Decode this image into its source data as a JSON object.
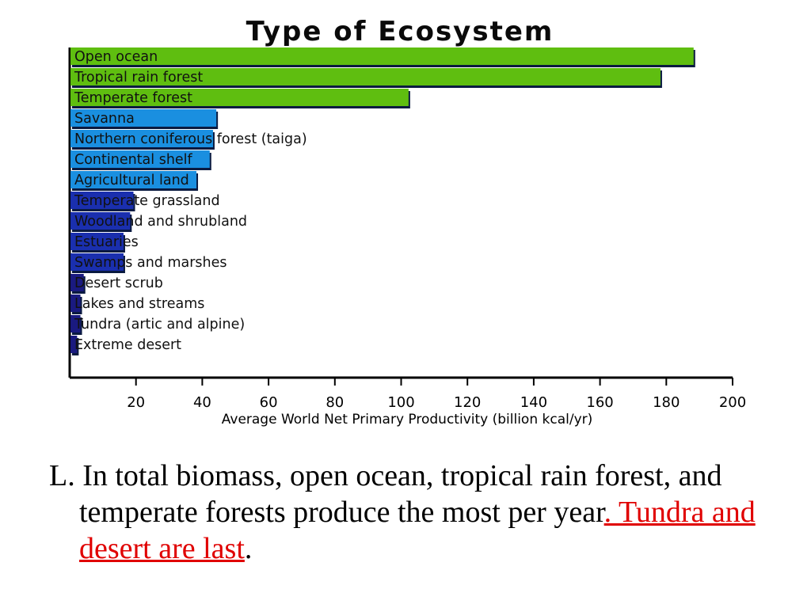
{
  "chart_data": {
    "type": "bar",
    "orientation": "horizontal",
    "title": "Type of Ecosystem",
    "xlabel": "Average World Net Primary Productivity (billion kcal/yr)",
    "ylabel": "",
    "xlim": [
      0,
      200
    ],
    "xticks": [
      20,
      40,
      60,
      80,
      100,
      120,
      140,
      160,
      180,
      200
    ],
    "categories": [
      "Open ocean",
      "Tropical rain forest",
      "Temperate forest",
      "Savanna",
      "Northern coniferous forest (taiga)",
      "Continental shelf",
      "Agricultural land",
      "Temperate grassland",
      "Woodland and shrubland",
      "Estuaries",
      "Swamps and marshes",
      "Desert scrub",
      "Lakes and streams",
      "Tundra (artic and alpine)",
      "Extreme desert"
    ],
    "values": [
      188,
      178,
      102,
      44,
      43,
      42,
      38,
      19,
      18,
      16,
      16,
      4,
      3,
      3,
      2
    ],
    "bar_colors": [
      "#5fbe10",
      "#5fbe10",
      "#5fbe10",
      "#1a8fe0",
      "#1a8fe0",
      "#1a8fe0",
      "#1a8fe0",
      "#1a2fae",
      "#1a2fae",
      "#1a2fae",
      "#1a2fae",
      "#1a1a80",
      "#1a1a80",
      "#1a1a80",
      "#1a1a80"
    ],
    "grid": false,
    "legend": "none"
  },
  "caption": {
    "lead": "L. In total biomass, open ocean, tropical rain forest, and temperate forests produce the most per year",
    "highlight": ".  Tundra and desert are last",
    "trail": "."
  }
}
